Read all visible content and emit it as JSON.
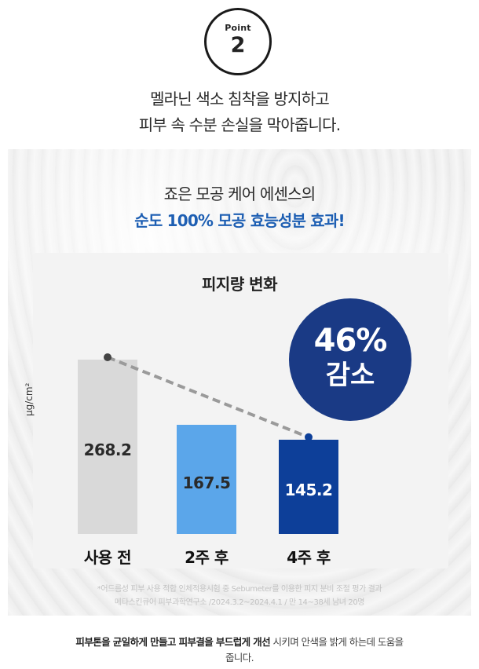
{
  "badge": {
    "label": "Point",
    "number": "2"
  },
  "headline": {
    "line1": "멜라닌 색소 침착을 방지하고",
    "line2": "피부 속 수분 손실을 막아줍니다."
  },
  "intro": {
    "line1": "죠은 모공 케어 에센스의",
    "line2": "순도 100% 모공 효능성분 효과!"
  },
  "highlight": {
    "percent": "46%",
    "label": "감소",
    "color": "#1a3a85"
  },
  "chart_data": {
    "type": "bar",
    "title": "피지량 변화",
    "ylabel": "μg/cm²",
    "categories": [
      "사용 전",
      "2주 후",
      "4주 후"
    ],
    "values": [
      268.2,
      167.5,
      145.2
    ],
    "value_labels": [
      "268.2",
      "167.5",
      "145.2"
    ],
    "bar_colors": [
      "#d9d9d9",
      "#5ba6ea",
      "#0d3f99"
    ],
    "trend_line": {
      "from": "사용 전",
      "to": "4주 후",
      "style": "dashed",
      "color": "#9a9a9a"
    },
    "ylim": [
      0,
      280
    ],
    "grid": false,
    "legend": "none"
  },
  "footnote": {
    "line1": "*어드름성 피부 사용 적합 인체적용시험 중 Sebumeter를 이용한 피지 분비 조절 평가 결과",
    "line2": "메타스킨큐어 피부과학연구소 /2024.3.2~2024.4.1 / 만 14~38세 남녀 20명"
  },
  "bottom": {
    "bold1": "피부톤을 균일하게 만들고 피부결을 부드럽게 개선",
    "rest1": " 시키며 안색을 밝게 하는데 도움을",
    "line2": "줍니다."
  }
}
